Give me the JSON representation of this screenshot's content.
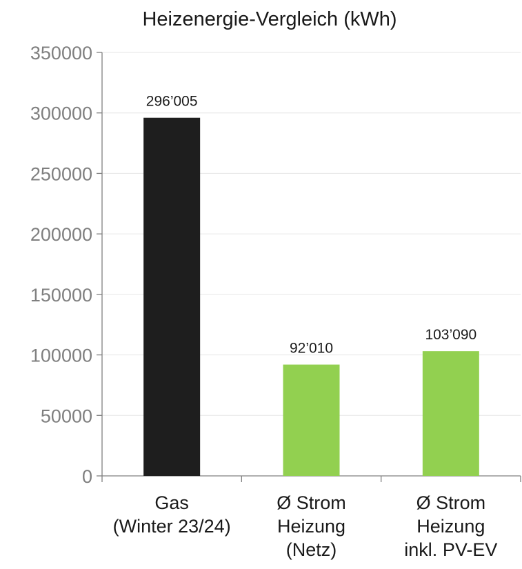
{
  "chart_data": {
    "type": "bar",
    "title": "Heizenergie-Vergleich (kWh)",
    "xlabel": "",
    "ylabel": "",
    "ylim": [
      0,
      350000
    ],
    "yticks": [
      0,
      50000,
      100000,
      150000,
      200000,
      250000,
      300000,
      350000
    ],
    "grid": true,
    "categories": [
      [
        "Gas",
        "(Winter 23/24)"
      ],
      [
        "Ø Strom",
        "Heizung",
        "(Netz)"
      ],
      [
        "Ø Strom",
        "Heizung",
        "inkl. PV-EV"
      ]
    ],
    "values": [
      296005,
      92010,
      103090
    ],
    "value_labels": [
      "296’005",
      "92’010",
      "103’090"
    ],
    "colors": [
      "#1e1e1e",
      "#92d050",
      "#92d050"
    ]
  }
}
